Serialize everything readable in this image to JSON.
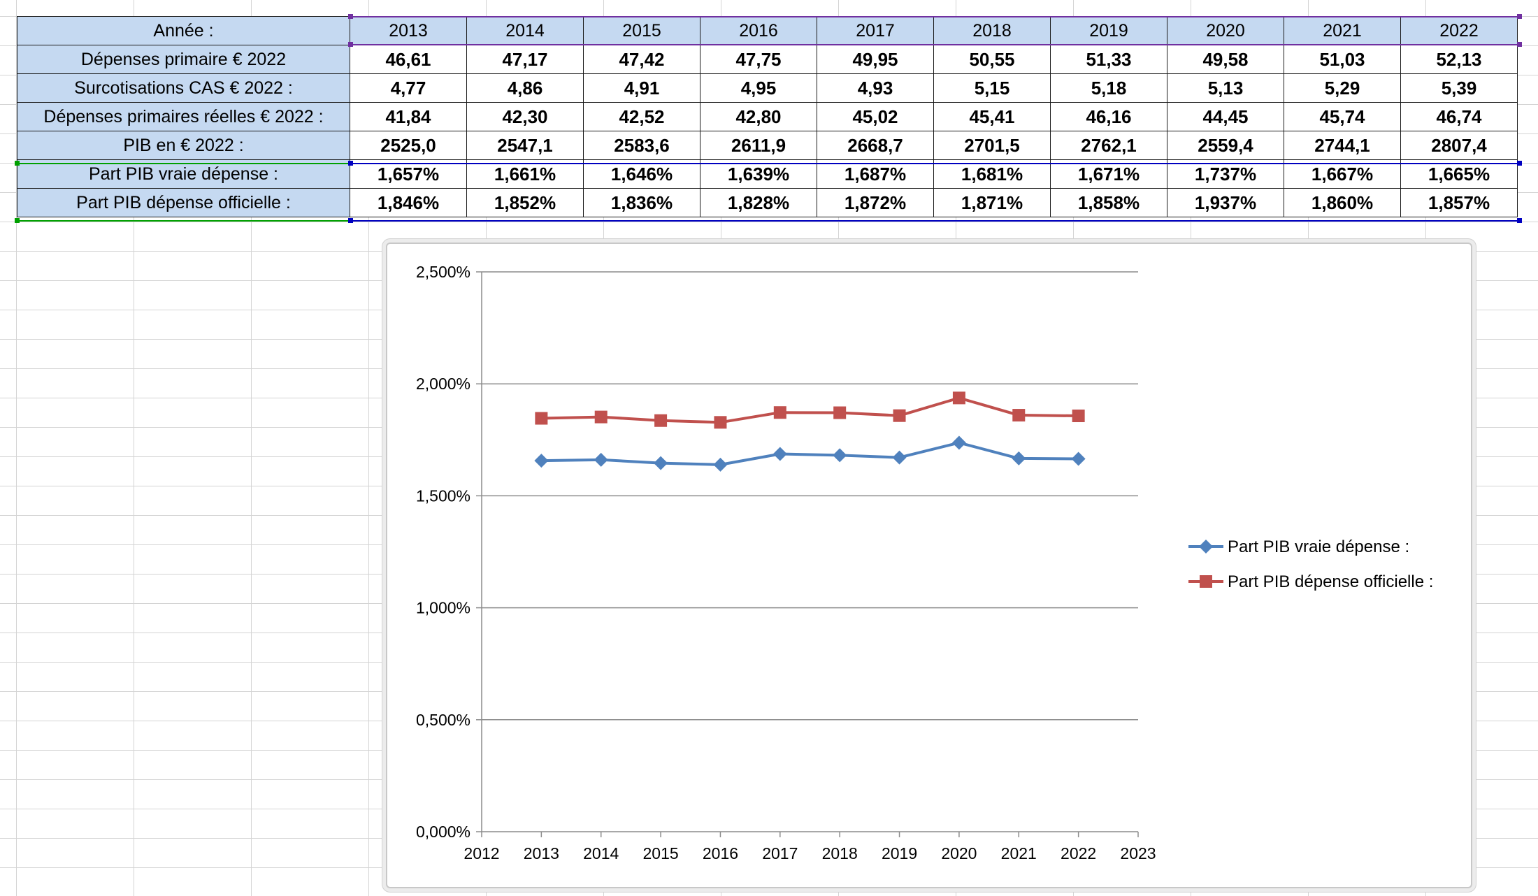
{
  "sheet": {
    "rows": [
      {
        "label": "Année :",
        "kind": "year",
        "values": [
          "2013",
          "2014",
          "2015",
          "2016",
          "2017",
          "2018",
          "2019",
          "2020",
          "2021",
          "2022"
        ]
      },
      {
        "label": "Dépenses primaire € 2022",
        "kind": "val",
        "values": [
          "46,61",
          "47,17",
          "47,42",
          "47,75",
          "49,95",
          "50,55",
          "51,33",
          "49,58",
          "51,03",
          "52,13"
        ]
      },
      {
        "label": "Surcotisations CAS € 2022 :",
        "kind": "val",
        "values": [
          "4,77",
          "4,86",
          "4,91",
          "4,95",
          "4,93",
          "5,15",
          "5,18",
          "5,13",
          "5,29",
          "5,39"
        ]
      },
      {
        "label": "Dépenses primaires réelles € 2022 :",
        "kind": "val",
        "values": [
          "41,84",
          "42,30",
          "42,52",
          "42,80",
          "45,02",
          "45,41",
          "46,16",
          "44,45",
          "45,74",
          "46,74"
        ]
      },
      {
        "label": "PIB en € 2022 :",
        "kind": "val",
        "values": [
          "2525,0",
          "2547,1",
          "2583,6",
          "2611,9",
          "2668,7",
          "2701,5",
          "2762,1",
          "2559,4",
          "2744,1",
          "2807,4"
        ]
      },
      {
        "label": "Part PIB vraie dépense :",
        "kind": "val",
        "values": [
          "1,657%",
          "1,661%",
          "1,646%",
          "1,639%",
          "1,687%",
          "1,681%",
          "1,671%",
          "1,737%",
          "1,667%",
          "1,665%"
        ]
      },
      {
        "label": "Part PIB dépense officielle :",
        "kind": "val",
        "values": [
          "1,846%",
          "1,852%",
          "1,836%",
          "1,828%",
          "1,872%",
          "1,871%",
          "1,858%",
          "1,937%",
          "1,860%",
          "1,857%"
        ]
      }
    ],
    "colors": {
      "header_fill": "#c5d9f1",
      "purple_range": "#7030a0",
      "green_range": "#00a000",
      "blue_range": "#0000c0"
    }
  },
  "chart_data": {
    "type": "line",
    "x_ticks": [
      "2012",
      "2013",
      "2014",
      "2015",
      "2016",
      "2017",
      "2018",
      "2019",
      "2020",
      "2021",
      "2022",
      "2023"
    ],
    "y_ticks": [
      "0,000%",
      "0,500%",
      "1,000%",
      "1,500%",
      "2,000%",
      "2,500%"
    ],
    "xlim": [
      2012,
      2023
    ],
    "ylim": [
      0,
      2.5
    ],
    "grid": "horizontal",
    "legend": "right",
    "x": [
      2013,
      2014,
      2015,
      2016,
      2017,
      2018,
      2019,
      2020,
      2021,
      2022
    ],
    "series": [
      {
        "name": "Part PIB vraie dépense :",
        "marker": "diamond",
        "color": "#4f81bd",
        "values": [
          1.657,
          1.661,
          1.646,
          1.639,
          1.687,
          1.681,
          1.671,
          1.737,
          1.667,
          1.665
        ]
      },
      {
        "name": "Part PIB dépense officielle :",
        "marker": "square",
        "color": "#c0504d",
        "values": [
          1.846,
          1.852,
          1.836,
          1.828,
          1.872,
          1.871,
          1.858,
          1.937,
          1.86,
          1.857
        ]
      }
    ]
  }
}
